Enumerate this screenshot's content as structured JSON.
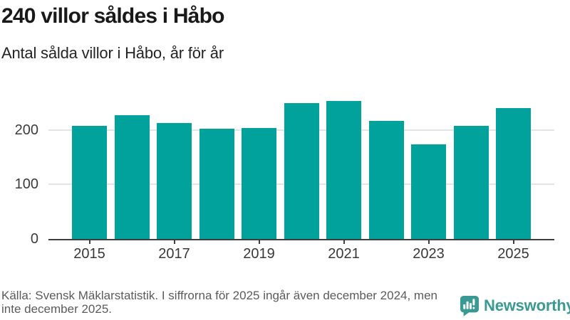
{
  "header": {
    "title": "240 villor såldes i Håbo",
    "subtitle": "Antal sålda villor i Håbo, år för år"
  },
  "chart_data": {
    "type": "bar",
    "title": "240 villor såldes i Håbo",
    "subtitle": "Antal sålda villor i Håbo, år för år",
    "xlabel": "",
    "ylabel": "",
    "categories": [
      "2015",
      "2016",
      "2017",
      "2018",
      "2019",
      "2020",
      "2021",
      "2022",
      "2023",
      "2024",
      "2025"
    ],
    "values": [
      207,
      227,
      212,
      202,
      203,
      249,
      253,
      216,
      173,
      207,
      240
    ],
    "x_tick_labels": [
      "2015",
      "2017",
      "2019",
      "2021",
      "2023",
      "2025"
    ],
    "y_ticks": [
      0,
      100,
      200
    ],
    "ylim": [
      0,
      262
    ],
    "grid": "horizontal",
    "legend": "none",
    "bar_color": "#00a29b",
    "grid_color": "#e4e4e4",
    "axis_color": "#3e3e3e"
  },
  "footer": {
    "source": "Källa: Svensk Mäklarstatistik. I siffrorna för 2025 ingår även december 2024, men inte december 2025.",
    "brand": "Newsworthy",
    "brand_color": "#3a9a93"
  }
}
